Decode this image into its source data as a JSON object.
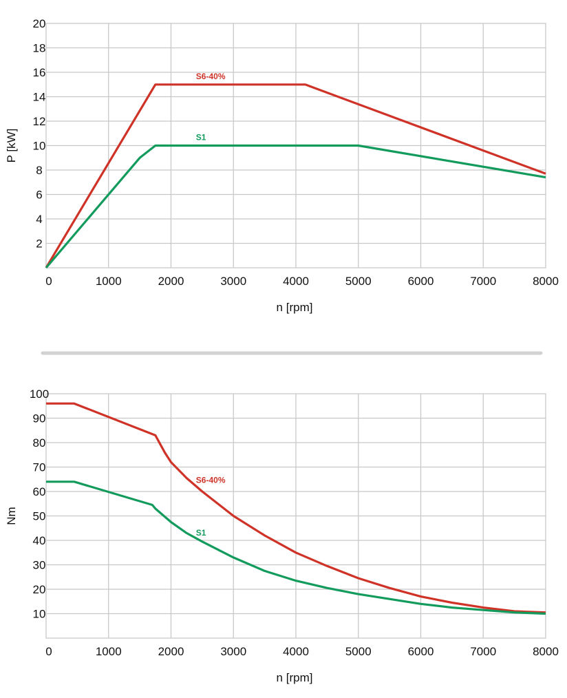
{
  "colors": {
    "s6": "#cf3328",
    "s1": "#129b5c",
    "grid": "#c8c8c8",
    "separator": "#d2d2d2"
  },
  "chart_data": [
    {
      "type": "line",
      "xlabel": "n [rpm]",
      "ylabel": "P [kW]",
      "xlim": [
        0,
        8000
      ],
      "ylim": [
        0,
        20
      ],
      "xticks": [
        0,
        1000,
        2000,
        3000,
        4000,
        5000,
        6000,
        7000,
        8000
      ],
      "yticks": [
        2,
        4,
        6,
        8,
        10,
        12,
        14,
        16,
        18,
        20
      ],
      "grid": true,
      "series": [
        {
          "name": "S6-40%",
          "color_key": "s6",
          "label_at": [
            2400,
            15.45
          ],
          "x": [
            0,
            1750,
            4150,
            8000
          ],
          "y": [
            0,
            15,
            15,
            7.7
          ]
        },
        {
          "name": "S1",
          "color_key": "s1",
          "label_at": [
            2400,
            10.45
          ],
          "x": [
            0,
            1500,
            1750,
            5000,
            8000
          ],
          "y": [
            0,
            9,
            10,
            10,
            7.4
          ]
        }
      ]
    },
    {
      "type": "line",
      "xlabel": "n [rpm]",
      "ylabel": "Nm",
      "xlim": [
        0,
        8000
      ],
      "ylim": [
        0,
        100
      ],
      "xticks": [
        0,
        1000,
        2000,
        3000,
        4000,
        5000,
        6000,
        7000,
        8000
      ],
      "yticks": [
        10,
        20,
        30,
        40,
        50,
        60,
        70,
        80,
        90,
        100
      ],
      "grid": true,
      "series": [
        {
          "name": "S6-40%",
          "color_key": "s6",
          "label_at": [
            2400,
            63.5
          ],
          "x": [
            0,
            450,
            1750,
            1900,
            2000,
            2250,
            2500,
            3000,
            3500,
            4000,
            4500,
            5000,
            5500,
            6000,
            6500,
            7000,
            7500,
            8000
          ],
          "y": [
            96,
            96,
            83,
            76,
            72,
            65.5,
            60,
            50,
            42,
            35,
            29.5,
            24.5,
            20.5,
            17,
            14.5,
            12.5,
            11,
            10.5
          ]
        },
        {
          "name": "S1",
          "color_key": "s1",
          "label_at": [
            2400,
            42
          ],
          "x": [
            0,
            450,
            1700,
            1750,
            2000,
            2250,
            2500,
            3000,
            3500,
            4000,
            4500,
            5000,
            5500,
            6000,
            6500,
            7000,
            7500,
            8000
          ],
          "y": [
            64,
            64,
            54.5,
            53,
            47.5,
            43,
            39.5,
            33,
            27.5,
            23.5,
            20.5,
            18,
            16,
            14,
            12.5,
            11.5,
            10.5,
            10
          ]
        }
      ]
    }
  ]
}
